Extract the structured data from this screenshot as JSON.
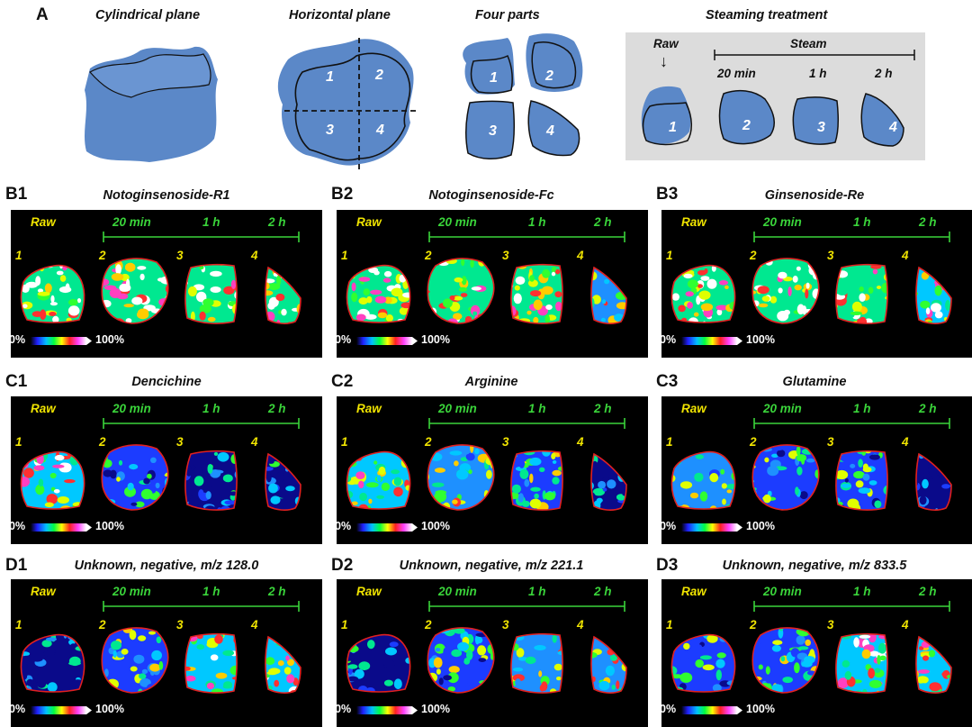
{
  "panel_a": {
    "label": "A",
    "titles": [
      "Cylindrical plane",
      "Horizontal plane",
      "Four parts",
      "Steaming treatment"
    ],
    "part_numbers": [
      "1",
      "2",
      "3",
      "4"
    ],
    "raw_label": "Raw",
    "steam_label": "Steam",
    "times": [
      "20 min",
      "1 h",
      "2 h"
    ]
  },
  "panels": [
    {
      "label": "B1",
      "title": "Notoginsenoside-R1"
    },
    {
      "label": "B2",
      "title": "Notoginsenoside-Fc"
    },
    {
      "label": "B3",
      "title": "Ginsenoside-Re"
    },
    {
      "label": "C1",
      "title": "Dencichine"
    },
    {
      "label": "C2",
      "title": "Arginine"
    },
    {
      "label": "C3",
      "title": "Glutamine"
    },
    {
      "label": "D1",
      "title": "Unknown, negative, m/z 128.0"
    },
    {
      "label": "D2",
      "title": "Unknown, negative, m/z 221.1"
    },
    {
      "label": "D3",
      "title": "Unknown, negative, m/z 833.5"
    }
  ],
  "panel_common": {
    "raw": "Raw",
    "times": [
      "20 min",
      "1 h",
      "2 h"
    ],
    "numbers": [
      "1",
      "2",
      "3",
      "4"
    ],
    "scale_min": "0%",
    "scale_max": "100%"
  },
  "colors": {
    "tissue": "#5b88c8",
    "panel_bg": "#000000",
    "yellow_text": "#f0e400",
    "green_text": "#3ad43a",
    "outline": "#e02020"
  }
}
